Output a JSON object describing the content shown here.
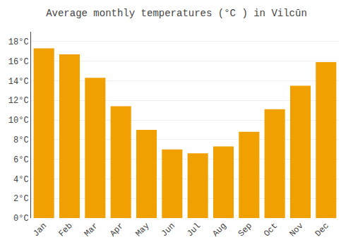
{
  "chart_data": {
    "type": "bar",
    "title": "Average monthly temperatures (°C ) in Vilcūn",
    "categories": [
      "Jan",
      "Feb",
      "Mar",
      "Apr",
      "May",
      "Jun",
      "Jul",
      "Aug",
      "Sep",
      "Oct",
      "Nov",
      "Dec"
    ],
    "values": [
      17.3,
      16.7,
      14.3,
      11.4,
      9.0,
      7.0,
      6.6,
      7.3,
      8.8,
      11.1,
      13.5,
      15.9
    ],
    "color": "#F0A000",
    "ylim": [
      0,
      19
    ],
    "yticks": [
      {
        "value": 0,
        "label": "0°C"
      },
      {
        "value": 2,
        "label": "2°C"
      },
      {
        "value": 4,
        "label": "4°C"
      },
      {
        "value": 6,
        "label": "6°C"
      },
      {
        "value": 8,
        "label": "8°C"
      },
      {
        "value": 10,
        "label": "10°C"
      },
      {
        "value": 12,
        "label": "12°C"
      },
      {
        "value": 14,
        "label": "14°C"
      },
      {
        "value": 16,
        "label": "16°C"
      },
      {
        "value": 18,
        "label": "18°C"
      }
    ],
    "grid": true
  }
}
